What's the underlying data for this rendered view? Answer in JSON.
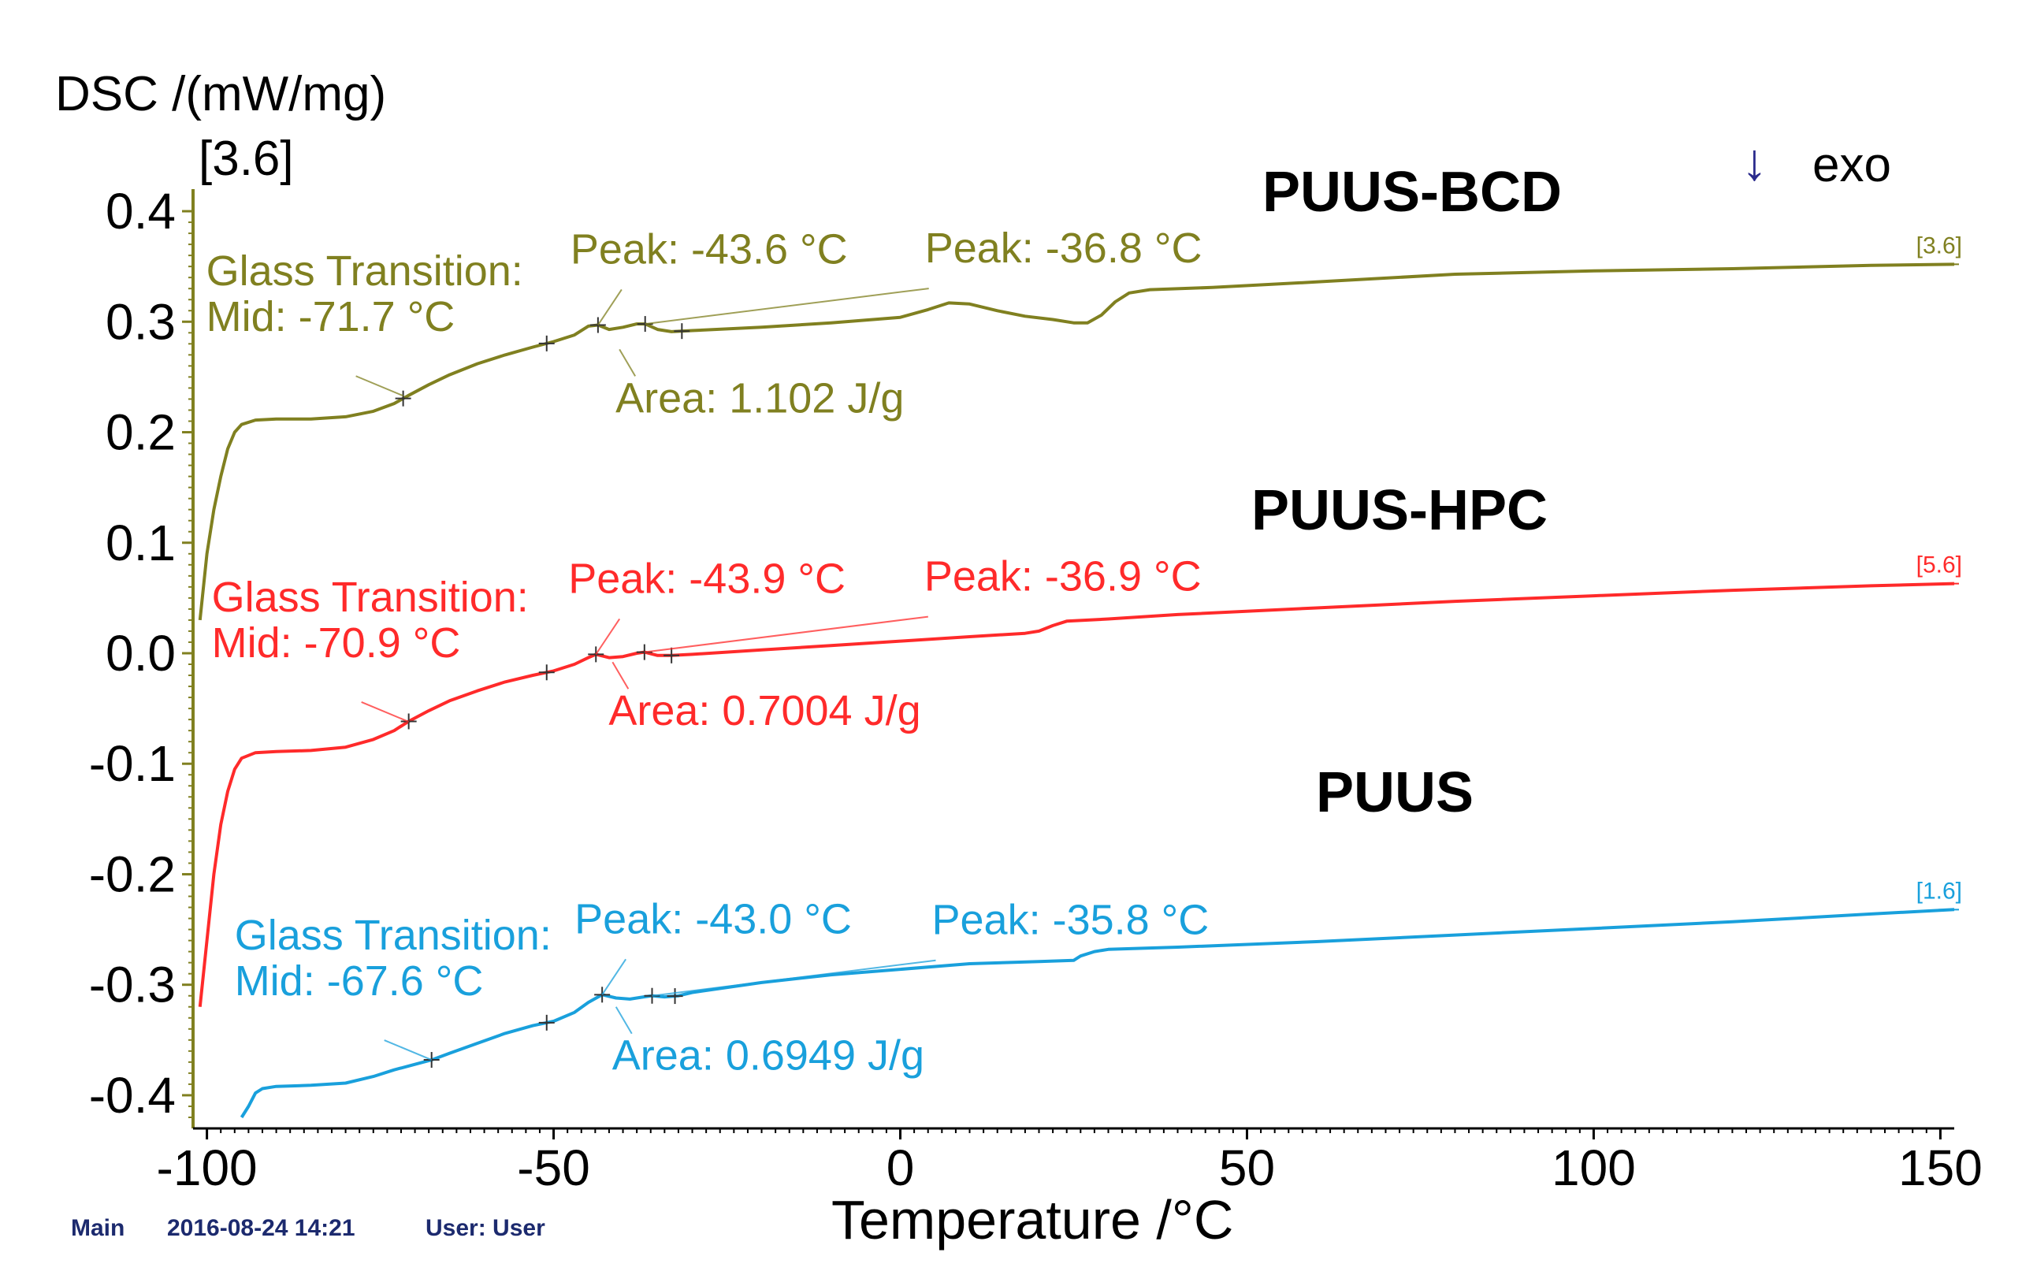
{
  "chart_data": {
    "type": "line",
    "ylabel": "DSC /(mW/mg)",
    "ylabel_sub": "[3.6]",
    "xlabel": "Temperature /°C",
    "xlim": [
      -102,
      152
    ],
    "ylim": [
      -0.43,
      0.42
    ],
    "x_ticks": [
      -100,
      -50,
      0,
      50,
      100,
      150
    ],
    "x_tick_labels": [
      "-100",
      "-50",
      "0",
      "50",
      "100",
      "150"
    ],
    "y_ticks": [
      0.4,
      0.3,
      0.2,
      0.1,
      0.0,
      -0.1,
      -0.2,
      -0.3,
      -0.4
    ],
    "y_tick_labels": [
      "0.4",
      "0.3",
      "0.2",
      "0.1",
      "0.0",
      "-0.1",
      "-0.2",
      "-0.3",
      "-0.4"
    ],
    "exo_label": "exo",
    "exo_arrow": "↓",
    "footer": {
      "main": "Main",
      "datetime": "2016-08-24 14:21",
      "user": "User: User"
    },
    "series": [
      {
        "name": "PUUS-BCD",
        "color": "#808020",
        "end_tag": "[3.6]",
        "points": [
          [
            -101,
            0.03
          ],
          [
            -100,
            0.09
          ],
          [
            -99,
            0.13
          ],
          [
            -98,
            0.16
          ],
          [
            -97,
            0.185
          ],
          [
            -96,
            0.2
          ],
          [
            -95,
            0.207
          ],
          [
            -93,
            0.211
          ],
          [
            -90,
            0.212
          ],
          [
            -85,
            0.212
          ],
          [
            -80,
            0.214
          ],
          [
            -76,
            0.219
          ],
          [
            -73,
            0.226
          ],
          [
            -71,
            0.233
          ],
          [
            -68,
            0.243
          ],
          [
            -65,
            0.252
          ],
          [
            -61,
            0.262
          ],
          [
            -57,
            0.27
          ],
          [
            -53,
            0.277
          ],
          [
            -50,
            0.282
          ],
          [
            -47,
            0.288
          ],
          [
            -45,
            0.296
          ],
          [
            -43.6,
            0.297
          ],
          [
            -42,
            0.293
          ],
          [
            -40,
            0.295
          ],
          [
            -38,
            0.298
          ],
          [
            -36.8,
            0.298
          ],
          [
            -35,
            0.293
          ],
          [
            -33,
            0.291
          ],
          [
            -30,
            0.292
          ],
          [
            -20,
            0.295
          ],
          [
            -10,
            0.299
          ],
          [
            0,
            0.304
          ],
          [
            4,
            0.311
          ],
          [
            7,
            0.317
          ],
          [
            10,
            0.316
          ],
          [
            14,
            0.31
          ],
          [
            18,
            0.305
          ],
          [
            22,
            0.302
          ],
          [
            25,
            0.299
          ],
          [
            27,
            0.299
          ],
          [
            29,
            0.306
          ],
          [
            31,
            0.318
          ],
          [
            33,
            0.326
          ],
          [
            36,
            0.329
          ],
          [
            45,
            0.331
          ],
          [
            60,
            0.336
          ],
          [
            80,
            0.343
          ],
          [
            100,
            0.346
          ],
          [
            120,
            0.348
          ],
          [
            140,
            0.351
          ],
          [
            152,
            0.352
          ]
        ],
        "markers": [
          -71.7,
          -51,
          -43.6,
          -36.8,
          -31.5
        ],
        "annotations": [
          {
            "lines": [
              "Glass Transition:",
              "Mid:  -71.7 °C"
            ],
            "at": [
              -71.7,
              0.233
            ],
            "kind": "gt"
          },
          {
            "lines": [
              "Peak: -43.6 °C"
            ],
            "at": [
              -43.6,
              0.297
            ],
            "kind": "peak1"
          },
          {
            "lines": [
              "Peak: -36.8 °C"
            ],
            "at": [
              -36.8,
              0.298
            ],
            "kind": "peak2"
          },
          {
            "lines": [
              "Area: 1.102 J/g"
            ],
            "at": [
              -40.5,
              0.275
            ],
            "kind": "area"
          }
        ]
      },
      {
        "name": "PUUS-HPC",
        "color": "#ff2a2a",
        "end_tag": "[5.6]",
        "points": [
          [
            -101,
            -0.32
          ],
          [
            -100,
            -0.26
          ],
          [
            -99,
            -0.2
          ],
          [
            -98,
            -0.155
          ],
          [
            -97,
            -0.125
          ],
          [
            -96,
            -0.105
          ],
          [
            -95,
            -0.095
          ],
          [
            -93,
            -0.09
          ],
          [
            -90,
            -0.089
          ],
          [
            -85,
            -0.088
          ],
          [
            -80,
            -0.085
          ],
          [
            -76,
            -0.078
          ],
          [
            -73,
            -0.07
          ],
          [
            -71,
            -0.062
          ],
          [
            -68,
            -0.052
          ],
          [
            -65,
            -0.043
          ],
          [
            -61,
            -0.034
          ],
          [
            -57,
            -0.026
          ],
          [
            -53,
            -0.02
          ],
          [
            -50,
            -0.016
          ],
          [
            -47,
            -0.01
          ],
          [
            -45,
            -0.004
          ],
          [
            -43.9,
            -0.001
          ],
          [
            -42,
            -0.004
          ],
          [
            -40,
            -0.003
          ],
          [
            -38,
            0.0
          ],
          [
            -36.9,
            0.001
          ],
          [
            -35,
            -0.002
          ],
          [
            -33,
            -0.002
          ],
          [
            -30,
            -0.001
          ],
          [
            -20,
            0.003
          ],
          [
            -10,
            0.007
          ],
          [
            0,
            0.011
          ],
          [
            10,
            0.015
          ],
          [
            18,
            0.018
          ],
          [
            20,
            0.02
          ],
          [
            22,
            0.025
          ],
          [
            24,
            0.029
          ],
          [
            30,
            0.031
          ],
          [
            40,
            0.035
          ],
          [
            60,
            0.041
          ],
          [
            80,
            0.047
          ],
          [
            100,
            0.052
          ],
          [
            120,
            0.057
          ],
          [
            140,
            0.061
          ],
          [
            152,
            0.063
          ]
        ],
        "markers": [
          -70.9,
          -51,
          -43.9,
          -36.9,
          -33
        ],
        "annotations": [
          {
            "lines": [
              "Glass Transition:",
              "Mid:  -70.9 °C"
            ],
            "at": [
              -70.9,
              -0.062
            ],
            "kind": "gt"
          },
          {
            "lines": [
              "Peak: -43.9 °C"
            ],
            "at": [
              -43.9,
              -0.001
            ],
            "kind": "peak1"
          },
          {
            "lines": [
              "Peak: -36.9 °C"
            ],
            "at": [
              -36.9,
              0.001
            ],
            "kind": "peak2"
          },
          {
            "lines": [
              "Area: 0.7004 J/g"
            ],
            "at": [
              -41.5,
              -0.008
            ],
            "kind": "area"
          }
        ]
      },
      {
        "name": "PUUS",
        "color": "#19a0dc",
        "end_tag": "[1.6]",
        "points": [
          [
            -95,
            -0.42
          ],
          [
            -94,
            -0.41
          ],
          [
            -93,
            -0.398
          ],
          [
            -92,
            -0.394
          ],
          [
            -90,
            -0.392
          ],
          [
            -85,
            -0.391
          ],
          [
            -80,
            -0.389
          ],
          [
            -76,
            -0.383
          ],
          [
            -73,
            -0.377
          ],
          [
            -70,
            -0.372
          ],
          [
            -67.6,
            -0.368
          ],
          [
            -65,
            -0.362
          ],
          [
            -61,
            -0.353
          ],
          [
            -57,
            -0.344
          ],
          [
            -53,
            -0.337
          ],
          [
            -50,
            -0.333
          ],
          [
            -47,
            -0.325
          ],
          [
            -45,
            -0.316
          ],
          [
            -43,
            -0.309
          ],
          [
            -41,
            -0.312
          ],
          [
            -39,
            -0.313
          ],
          [
            -37,
            -0.311
          ],
          [
            -35.8,
            -0.31
          ],
          [
            -34,
            -0.311
          ],
          [
            -32,
            -0.31
          ],
          [
            -30,
            -0.307
          ],
          [
            -20,
            -0.298
          ],
          [
            -10,
            -0.291
          ],
          [
            0,
            -0.286
          ],
          [
            10,
            -0.281
          ],
          [
            20,
            -0.279
          ],
          [
            25,
            -0.278
          ],
          [
            26,
            -0.274
          ],
          [
            28,
            -0.27
          ],
          [
            30,
            -0.268
          ],
          [
            40,
            -0.266
          ],
          [
            60,
            -0.261
          ],
          [
            80,
            -0.255
          ],
          [
            100,
            -0.249
          ],
          [
            120,
            -0.243
          ],
          [
            140,
            -0.236
          ],
          [
            152,
            -0.232
          ]
        ],
        "markers": [
          -67.6,
          -51,
          -43,
          -35.8,
          -32.5
        ],
        "annotations": [
          {
            "lines": [
              "Glass Transition:",
              "Mid:  -67.6 °C"
            ],
            "at": [
              -67.6,
              -0.368
            ],
            "kind": "gt"
          },
          {
            "lines": [
              "Peak: -43.0 °C"
            ],
            "at": [
              -43.0,
              -0.309
            ],
            "kind": "peak1"
          },
          {
            "lines": [
              "Peak: -35.8 °C"
            ],
            "at": [
              -35.8,
              -0.31
            ],
            "kind": "peak2"
          },
          {
            "lines": [
              "Area: 0.6949 J/g"
            ],
            "at": [
              -41,
              -0.32
            ],
            "kind": "area"
          }
        ]
      }
    ]
  }
}
